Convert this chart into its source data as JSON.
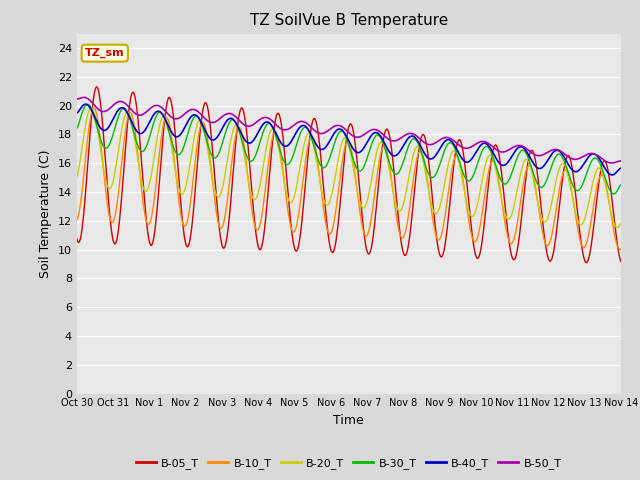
{
  "title": "TZ SoilVue B Temperature",
  "xlabel": "Time",
  "ylabel": "Soil Temperature (C)",
  "ylim": [
    0,
    25
  ],
  "yticks": [
    0,
    2,
    4,
    6,
    8,
    10,
    12,
    14,
    16,
    18,
    20,
    22,
    24
  ],
  "xtick_labels": [
    "Oct 30",
    "Oct 31",
    "Nov 1",
    "Nov 2",
    "Nov 3",
    "Nov 4",
    "Nov 5",
    "Nov 6",
    "Nov 7",
    "Nov 8",
    "Nov 9",
    "Nov 10",
    "Nov 11",
    "Nov 12",
    "Nov 13",
    "Nov 14"
  ],
  "background_color": "#d9d9d9",
  "plot_bg_color": "#e8e8e8",
  "annotation_text": "TZ_sm",
  "annotation_color": "#cc0000",
  "annotation_bg": "#ffffe0",
  "annotation_border": "#ccaa00",
  "series_colors": [
    "#cc0000",
    "#ff8800",
    "#cccc00",
    "#00bb00",
    "#0000cc",
    "#aa00aa"
  ],
  "series_labels": [
    "B-05_T",
    "B-10_T",
    "B-20_T",
    "B-30_T",
    "B-40_T",
    "B-50_T"
  ]
}
